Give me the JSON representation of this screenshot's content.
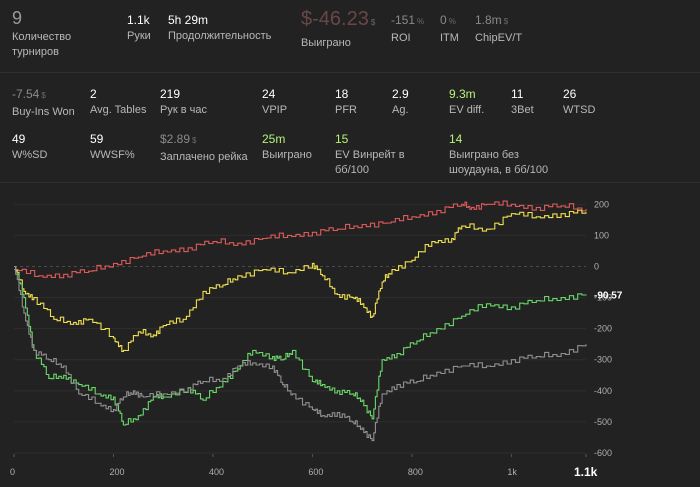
{
  "summary": {
    "tournaments": {
      "value": "9",
      "label": "Количество турниров"
    },
    "hands": {
      "value": "1.1k",
      "label": "Руки"
    },
    "duration": {
      "value": "5h 29m",
      "label": "Продолжительность"
    },
    "won": {
      "value": "$-46.23",
      "currency": "$",
      "label": "Выиграно"
    },
    "roi": {
      "value": "-151",
      "unit": "%",
      "label": "ROI"
    },
    "itm": {
      "value": "0",
      "unit": "%",
      "label": "ITM"
    },
    "chipev": {
      "value": "1.8m",
      "unit": "$",
      "label": "ChipEV/T"
    }
  },
  "stats_row1": [
    {
      "value": "-7.54",
      "unit": "$",
      "label": "Buy-Ins Won"
    },
    {
      "value": "2",
      "label": "Avg. Tables"
    },
    {
      "value": "219",
      "label": "Рук в час"
    },
    {
      "value": "24",
      "label": "VPIP"
    },
    {
      "value": "18",
      "label": "PFR"
    },
    {
      "value": "2.9",
      "label": "Ag."
    },
    {
      "value": "9.3m",
      "label": "EV diff."
    },
    {
      "value": "11",
      "label": "3Bet"
    },
    {
      "value": "26",
      "label": "WTSD"
    }
  ],
  "stats_row2": [
    {
      "value": "49",
      "label": "W%SD"
    },
    {
      "value": "59",
      "label": "WWSF%"
    },
    {
      "value": "$2.89",
      "unit": "$",
      "label": "Заплачено рейка"
    },
    {
      "value": "25m",
      "label": "Выиграно"
    },
    {
      "value": "15",
      "label": "EV Винрейт в бб/100"
    },
    {
      "value": "14",
      "label": "Выиграно без шоудауна, в бб/100"
    }
  ],
  "chart_data": {
    "type": "line",
    "x_ticks": [
      "0",
      "200",
      "400",
      "600",
      "800",
      "1k",
      "1.1k"
    ],
    "y_ticks": [
      "200",
      "100",
      "0",
      "-100",
      "-200",
      "-300",
      "-400",
      "-500",
      "-600"
    ],
    "xlim": [
      0,
      1150
    ],
    "ylim": [
      -600,
      230
    ],
    "end_label": "-90.57",
    "series": [
      {
        "name": "red",
        "color": "#e05a5a",
        "points": [
          [
            0,
            -10
          ],
          [
            50,
            -30
          ],
          [
            100,
            -25
          ],
          [
            150,
            -15
          ],
          [
            200,
            10
          ],
          [
            250,
            30
          ],
          [
            300,
            50
          ],
          [
            350,
            60
          ],
          [
            400,
            80
          ],
          [
            450,
            75
          ],
          [
            500,
            90
          ],
          [
            550,
            100
          ],
          [
            600,
            110
          ],
          [
            650,
            120
          ],
          [
            700,
            135
          ],
          [
            750,
            140
          ],
          [
            800,
            160
          ],
          [
            850,
            180
          ],
          [
            900,
            200
          ],
          [
            920,
            190
          ],
          [
            950,
            200
          ],
          [
            1000,
            200
          ],
          [
            1050,
            190
          ],
          [
            1100,
            195
          ],
          [
            1150,
            185
          ]
        ]
      },
      {
        "name": "yellow",
        "color": "#f0e050",
        "points": [
          [
            0,
            0
          ],
          [
            20,
            -80
          ],
          [
            40,
            -100
          ],
          [
            80,
            -170
          ],
          [
            120,
            -180
          ],
          [
            150,
            -170
          ],
          [
            200,
            -230
          ],
          [
            220,
            -270
          ],
          [
            250,
            -210
          ],
          [
            280,
            -220
          ],
          [
            300,
            -190
          ],
          [
            340,
            -170
          ],
          [
            380,
            -80
          ],
          [
            420,
            -60
          ],
          [
            450,
            -30
          ],
          [
            500,
            -10
          ],
          [
            550,
            -20
          ],
          [
            600,
            10
          ],
          [
            620,
            -30
          ],
          [
            650,
            -90
          ],
          [
            680,
            -100
          ],
          [
            700,
            -120
          ],
          [
            720,
            -160
          ],
          [
            740,
            -50
          ],
          [
            760,
            -10
          ],
          [
            800,
            20
          ],
          [
            840,
            80
          ],
          [
            880,
            90
          ],
          [
            900,
            130
          ],
          [
            950,
            120
          ],
          [
            1000,
            170
          ],
          [
            1050,
            160
          ],
          [
            1100,
            170
          ],
          [
            1150,
            175
          ]
        ]
      },
      {
        "name": "green",
        "color": "#6ad86a",
        "points": [
          [
            0,
            0
          ],
          [
            20,
            -100
          ],
          [
            40,
            -270
          ],
          [
            70,
            -360
          ],
          [
            100,
            -350
          ],
          [
            130,
            -380
          ],
          [
            170,
            -410
          ],
          [
            200,
            -420
          ],
          [
            220,
            -510
          ],
          [
            250,
            -480
          ],
          [
            280,
            -420
          ],
          [
            300,
            -420
          ],
          [
            350,
            -390
          ],
          [
            380,
            -430
          ],
          [
            420,
            -370
          ],
          [
            450,
            -330
          ],
          [
            480,
            -270
          ],
          [
            520,
            -290
          ],
          [
            540,
            -300
          ],
          [
            560,
            -270
          ],
          [
            600,
            -370
          ],
          [
            620,
            -380
          ],
          [
            650,
            -400
          ],
          [
            680,
            -410
          ],
          [
            700,
            -430
          ],
          [
            720,
            -490
          ],
          [
            740,
            -300
          ],
          [
            770,
            -280
          ],
          [
            810,
            -240
          ],
          [
            850,
            -200
          ],
          [
            900,
            -160
          ],
          [
            950,
            -120
          ],
          [
            1000,
            -130
          ],
          [
            1050,
            -110
          ],
          [
            1100,
            -100
          ],
          [
            1150,
            -90
          ]
        ]
      },
      {
        "name": "gray",
        "color": "#909090",
        "points": [
          [
            0,
            0
          ],
          [
            20,
            -150
          ],
          [
            40,
            -270
          ],
          [
            70,
            -300
          ],
          [
            100,
            -320
          ],
          [
            130,
            -410
          ],
          [
            170,
            -440
          ],
          [
            200,
            -460
          ],
          [
            220,
            -420
          ],
          [
            240,
            -400
          ],
          [
            260,
            -420
          ],
          [
            300,
            -410
          ],
          [
            350,
            -390
          ],
          [
            380,
            -370
          ],
          [
            420,
            -360
          ],
          [
            450,
            -320
          ],
          [
            480,
            -310
          ],
          [
            520,
            -320
          ],
          [
            540,
            -380
          ],
          [
            560,
            -410
          ],
          [
            600,
            -460
          ],
          [
            620,
            -480
          ],
          [
            650,
            -470
          ],
          [
            680,
            -500
          ],
          [
            700,
            -520
          ],
          [
            720,
            -560
          ],
          [
            740,
            -410
          ],
          [
            770,
            -380
          ],
          [
            810,
            -370
          ],
          [
            850,
            -340
          ],
          [
            900,
            -320
          ],
          [
            950,
            -320
          ],
          [
            1000,
            -300
          ],
          [
            1050,
            -290
          ],
          [
            1100,
            -280
          ],
          [
            1150,
            -250
          ]
        ]
      }
    ]
  }
}
